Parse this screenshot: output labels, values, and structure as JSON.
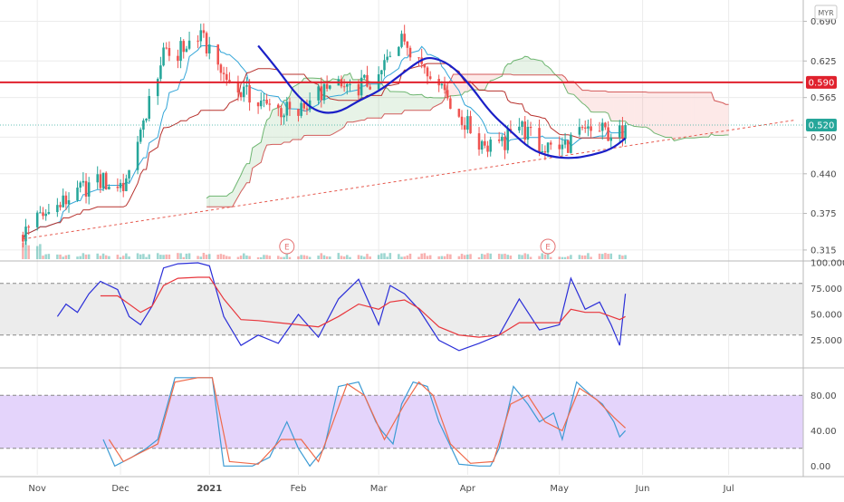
{
  "currency": "MYR",
  "chart_data": [
    {
      "type": "candlestick",
      "name": "",
      "y_ticks": [
        0.315,
        0.375,
        0.44,
        0.5,
        0.565,
        0.625,
        0.69
      ],
      "y_tick_labels": [
        "0.315",
        "0.375",
        "0.440",
        "0.500",
        "0.565",
        "0.625",
        "0.690"
      ],
      "ylim": [
        0.3,
        0.725
      ],
      "x_labels": [
        "Nov",
        "Dec",
        "2021",
        "Feb",
        "Mar",
        "Apr",
        "May",
        "Jun",
        "Jul"
      ],
      "x_label_dates": [
        "2020-11-02",
        "2020-12-01",
        "2021-01-01",
        "2021-02-01",
        "2021-03-01",
        "2021-04-01",
        "2021-05-03",
        "2021-06-01",
        "2021-07-01"
      ],
      "date_range": [
        "2020-10-20",
        "2021-07-27"
      ],
      "price_labels": [
        {
          "value": 0.59,
          "text": "0.590",
          "color": "#e0212d"
        },
        {
          "value": 0.52,
          "text": "0.520",
          "color": "#26a69a"
        }
      ],
      "resistance_level": 0.59,
      "current_price": 0.52,
      "trendline": {
        "from": [
          "2020-10-28",
          0.333
        ],
        "to": [
          "2021-07-24",
          0.528
        ]
      },
      "earnings_markers": [
        {
          "date": "2021-01-28",
          "text": "E"
        },
        {
          "date": "2021-04-29",
          "text": "E"
        }
      ],
      "cup_curve": [
        [
          "2021-01-18",
          0.65
        ],
        [
          "2021-01-25",
          0.61
        ],
        [
          "2021-02-01",
          0.565
        ],
        [
          "2021-02-08",
          0.54
        ],
        [
          "2021-02-15",
          0.54
        ],
        [
          "2021-02-22",
          0.56
        ],
        [
          "2021-03-01",
          0.575
        ],
        [
          "2021-03-08",
          0.6
        ],
        [
          "2021-03-15",
          0.625
        ],
        [
          "2021-03-19",
          0.632
        ],
        [
          "2021-03-26",
          0.62
        ],
        [
          "2021-04-02",
          0.585
        ],
        [
          "2021-04-09",
          0.54
        ],
        [
          "2021-04-16",
          0.51
        ],
        [
          "2021-04-23",
          0.48
        ],
        [
          "2021-04-30",
          0.468
        ],
        [
          "2021-05-07",
          0.465
        ],
        [
          "2021-05-14",
          0.47
        ],
        [
          "2021-05-21",
          0.48
        ],
        [
          "2021-05-26",
          0.498
        ]
      ],
      "price_path": [
        [
          "2020-10-28",
          0.34
        ],
        [
          "2020-11-02",
          0.365
        ],
        [
          "2020-11-09",
          0.385
        ],
        [
          "2020-11-16",
          0.41
        ],
        [
          "2020-11-23",
          0.43
        ],
        [
          "2020-11-30",
          0.42
        ],
        [
          "2020-12-04",
          0.43
        ],
        [
          "2020-12-08",
          0.5
        ],
        [
          "2020-12-12",
          0.59
        ],
        [
          "2020-12-16",
          0.63
        ],
        [
          "2020-12-21",
          0.64
        ],
        [
          "2020-12-28",
          0.665
        ],
        [
          "2021-01-01",
          0.645
        ],
        [
          "2021-01-06",
          0.6
        ],
        [
          "2021-01-12",
          0.575
        ],
        [
          "2021-01-18",
          0.555
        ],
        [
          "2021-01-25",
          0.545
        ],
        [
          "2021-02-01",
          0.54
        ],
        [
          "2021-02-08",
          0.57
        ],
        [
          "2021-02-15",
          0.58
        ],
        [
          "2021-02-22",
          0.585
        ],
        [
          "2021-03-01",
          0.595
        ],
        [
          "2021-03-05",
          0.64
        ],
        [
          "2021-03-10",
          0.66
        ],
        [
          "2021-03-15",
          0.63
        ],
        [
          "2021-03-22",
          0.595
        ],
        [
          "2021-03-29",
          0.535
        ],
        [
          "2021-04-05",
          0.495
        ],
        [
          "2021-04-12",
          0.48
        ],
        [
          "2021-04-19",
          0.52
        ],
        [
          "2021-04-26",
          0.485
        ],
        [
          "2021-05-03",
          0.48
        ],
        [
          "2021-05-10",
          0.505
        ],
        [
          "2021-05-17",
          0.51
        ],
        [
          "2021-05-24",
          0.505
        ],
        [
          "2021-05-26",
          0.52
        ]
      ]
    },
    {
      "type": "line",
      "name": "",
      "ylim": [
        0,
        100
      ],
      "y_ticks": [
        25,
        50,
        75,
        100
      ],
      "y_tick_labels": [
        "25.000",
        "50.000",
        "75.000",
        "100.000"
      ],
      "band": [
        30,
        80
      ],
      "series": [
        {
          "name": "",
          "color": "#2a2ed8",
          "values": [
            [
              "2020-11-09",
              48
            ],
            [
              "2020-11-12",
              60
            ],
            [
              "2020-11-16",
              52
            ],
            [
              "2020-11-20",
              70
            ],
            [
              "2020-11-24",
              82
            ],
            [
              "2020-11-30",
              74
            ],
            [
              "2020-12-04",
              48
            ],
            [
              "2020-12-08",
              40
            ],
            [
              "2020-12-12",
              58
            ],
            [
              "2020-12-16",
              95
            ],
            [
              "2020-12-21",
              99
            ],
            [
              "2020-12-28",
              100
            ],
            [
              "2021-01-01",
              97
            ],
            [
              "2021-01-06",
              48
            ],
            [
              "2021-01-12",
              20
            ],
            [
              "2021-01-18",
              30
            ],
            [
              "2021-01-25",
              22
            ],
            [
              "2021-02-01",
              50
            ],
            [
              "2021-02-08",
              28
            ],
            [
              "2021-02-15",
              65
            ],
            [
              "2021-02-22",
              84
            ],
            [
              "2021-03-01",
              40
            ],
            [
              "2021-03-05",
              78
            ],
            [
              "2021-03-10",
              70
            ],
            [
              "2021-03-15",
              55
            ],
            [
              "2021-03-22",
              25
            ],
            [
              "2021-03-29",
              15
            ],
            [
              "2021-04-05",
              22
            ],
            [
              "2021-04-12",
              30
            ],
            [
              "2021-04-19",
              65
            ],
            [
              "2021-04-26",
              35
            ],
            [
              "2021-05-03",
              40
            ],
            [
              "2021-05-07",
              85
            ],
            [
              "2021-05-12",
              55
            ],
            [
              "2021-05-17",
              62
            ],
            [
              "2021-05-21",
              40
            ],
            [
              "2021-05-24",
              20
            ],
            [
              "2021-05-26",
              70
            ]
          ]
        },
        {
          "name": "",
          "color": "#e8363c",
          "values": [
            [
              "2020-11-24",
              68
            ],
            [
              "2020-11-30",
              68
            ],
            [
              "2020-12-08",
              52
            ],
            [
              "2020-12-12",
              58
            ],
            [
              "2020-12-16",
              78
            ],
            [
              "2020-12-21",
              85
            ],
            [
              "2020-12-28",
              86
            ],
            [
              "2021-01-01",
              86
            ],
            [
              "2021-01-06",
              65
            ],
            [
              "2021-01-12",
              45
            ],
            [
              "2021-01-18",
              44
            ],
            [
              "2021-01-25",
              42
            ],
            [
              "2021-02-01",
              40
            ],
            [
              "2021-02-08",
              38
            ],
            [
              "2021-02-15",
              48
            ],
            [
              "2021-02-22",
              60
            ],
            [
              "2021-03-01",
              55
            ],
            [
              "2021-03-05",
              62
            ],
            [
              "2021-03-10",
              64
            ],
            [
              "2021-03-15",
              56
            ],
            [
              "2021-03-22",
              38
            ],
            [
              "2021-03-29",
              30
            ],
            [
              "2021-04-05",
              28
            ],
            [
              "2021-04-12",
              30
            ],
            [
              "2021-04-19",
              42
            ],
            [
              "2021-04-26",
              42
            ],
            [
              "2021-05-03",
              42
            ],
            [
              "2021-05-07",
              55
            ],
            [
              "2021-05-12",
              52
            ],
            [
              "2021-05-17",
              52
            ],
            [
              "2021-05-24",
              45
            ],
            [
              "2021-05-26",
              48
            ]
          ]
        }
      ]
    },
    {
      "type": "line",
      "name": "",
      "ylim": [
        -10,
        110
      ],
      "y_ticks": [
        0,
        40,
        80
      ],
      "y_tick_labels": [
        "0.00",
        "40.00",
        "80.00"
      ],
      "band": [
        20,
        80
      ],
      "series": [
        {
          "name": "",
          "color": "#3d9bd4",
          "values": [
            [
              "2020-11-25",
              30
            ],
            [
              "2020-11-29",
              0
            ],
            [
              "2020-12-05",
              10
            ],
            [
              "2020-12-10",
              20
            ],
            [
              "2020-12-14",
              30
            ],
            [
              "2020-12-20",
              100
            ],
            [
              "2020-12-28",
              100
            ],
            [
              "2021-01-02",
              100
            ],
            [
              "2021-01-06",
              0
            ],
            [
              "2021-01-16",
              0
            ],
            [
              "2021-01-22",
              10
            ],
            [
              "2021-01-28",
              50
            ],
            [
              "2021-02-01",
              20
            ],
            [
              "2021-02-05",
              0
            ],
            [
              "2021-02-10",
              20
            ],
            [
              "2021-02-15",
              90
            ],
            [
              "2021-02-22",
              95
            ],
            [
              "2021-02-28",
              50
            ],
            [
              "2021-03-02",
              40
            ],
            [
              "2021-03-06",
              25
            ],
            [
              "2021-03-09",
              70
            ],
            [
              "2021-03-13",
              95
            ],
            [
              "2021-03-18",
              90
            ],
            [
              "2021-03-22",
              50
            ],
            [
              "2021-03-29",
              2
            ],
            [
              "2021-04-05",
              0
            ],
            [
              "2021-04-09",
              0
            ],
            [
              "2021-04-12",
              20
            ],
            [
              "2021-04-17",
              90
            ],
            [
              "2021-04-22",
              70
            ],
            [
              "2021-04-26",
              50
            ],
            [
              "2021-05-01",
              60
            ],
            [
              "2021-05-04",
              30
            ],
            [
              "2021-05-09",
              95
            ],
            [
              "2021-05-14",
              80
            ],
            [
              "2021-05-18",
              70
            ],
            [
              "2021-05-22",
              50
            ],
            [
              "2021-05-24",
              33
            ],
            [
              "2021-05-26",
              40
            ]
          ]
        },
        {
          "name": "",
          "color": "#ef6a4a",
          "values": [
            [
              "2020-11-27",
              30
            ],
            [
              "2020-12-02",
              5
            ],
            [
              "2020-12-08",
              15
            ],
            [
              "2020-12-14",
              25
            ],
            [
              "2020-12-20",
              95
            ],
            [
              "2020-12-28",
              100
            ],
            [
              "2021-01-02",
              100
            ],
            [
              "2021-01-08",
              5
            ],
            [
              "2021-01-18",
              2
            ],
            [
              "2021-01-26",
              30
            ],
            [
              "2021-02-02",
              30
            ],
            [
              "2021-02-08",
              5
            ],
            [
              "2021-02-12",
              40
            ],
            [
              "2021-02-18",
              93
            ],
            [
              "2021-02-24",
              80
            ],
            [
              "2021-03-03",
              30
            ],
            [
              "2021-03-10",
              70
            ],
            [
              "2021-03-15",
              95
            ],
            [
              "2021-03-20",
              80
            ],
            [
              "2021-03-26",
              25
            ],
            [
              "2021-04-02",
              3
            ],
            [
              "2021-04-10",
              5
            ],
            [
              "2021-04-16",
              70
            ],
            [
              "2021-04-22",
              80
            ],
            [
              "2021-04-28",
              50
            ],
            [
              "2021-05-04",
              40
            ],
            [
              "2021-05-10",
              88
            ],
            [
              "2021-05-16",
              75
            ],
            [
              "2021-05-22",
              55
            ],
            [
              "2021-05-26",
              43
            ]
          ]
        }
      ]
    }
  ],
  "colors": {
    "up": "#26a69a",
    "down": "#ef5350",
    "cup": "#1a1fc7",
    "resistance": "#e0212d",
    "trendline": "#e65a4f",
    "fast_line": "#34a6d8",
    "slow_line": "#b8332f",
    "span_a": "#43a047",
    "span_b": "#c62828",
    "band_grey": "#ececec",
    "band_purple": "#e4d4fb",
    "grid": "#ececec",
    "axis_text": "#4a4a4a"
  }
}
